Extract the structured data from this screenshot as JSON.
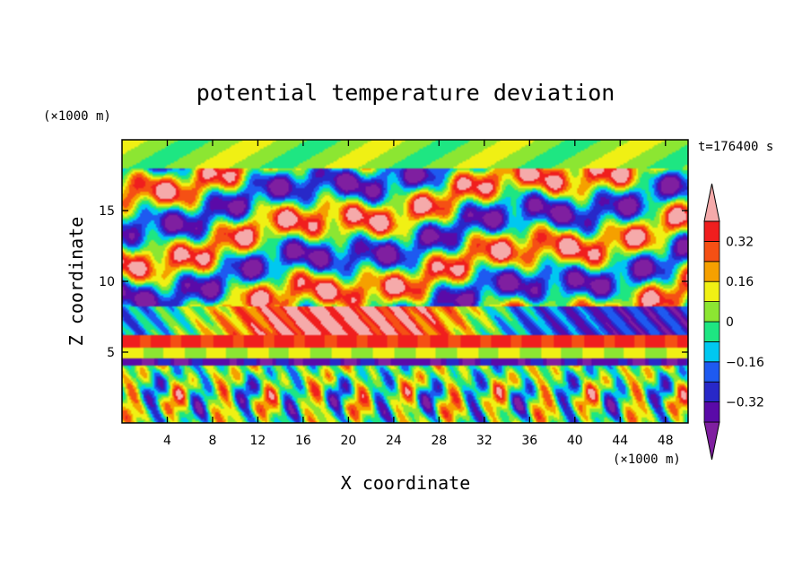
{
  "chart_data": {
    "type": "heatmap",
    "title": "potential temperature deviation",
    "xlabel": "X coordinate",
    "ylabel": "Z coordinate",
    "x_unit": "(×1000 m)",
    "y_unit": "(×1000 m)",
    "time_label": "t=176400 s",
    "xlim": [
      0,
      50
    ],
    "ylim": [
      0,
      20
    ],
    "x_ticks": [
      4,
      8,
      12,
      16,
      20,
      24,
      28,
      32,
      36,
      40,
      44,
      48
    ],
    "y_ticks": [
      5,
      10,
      15
    ],
    "colorbar": {
      "levels": [
        -0.4,
        -0.32,
        -0.24,
        -0.16,
        -0.08,
        0,
        0.08,
        0.16,
        0.24,
        0.32,
        0.4
      ],
      "tick_labels": [
        "0.32",
        "0.16",
        "0",
        "−0.16",
        "−0.32"
      ],
      "tick_values": [
        0.32,
        0.16,
        0,
        -0.16,
        -0.32
      ],
      "colors": [
        "#7f1fa0",
        "#5a0aa8",
        "#2828c8",
        "#1e5af0",
        "#00c8f0",
        "#1ee682",
        "#8ce632",
        "#f0f014",
        "#f5a000",
        "#f55014",
        "#f01e1e",
        "#f5aaaa"
      ]
    },
    "regions": [
      {
        "z": [
          0,
          4
        ],
        "mean": 0.02,
        "pattern": "vertical-plumes"
      },
      {
        "z": [
          4,
          4.6
        ],
        "mean": -0.36,
        "pattern": "band"
      },
      {
        "z": [
          4.6,
          5.3
        ],
        "mean": 0.1,
        "pattern": "band"
      },
      {
        "z": [
          5.3,
          6.2
        ],
        "mean": 0.36,
        "pattern": "band"
      },
      {
        "z": [
          6.2,
          8.2
        ],
        "mean": 0.3,
        "pattern": "dome"
      },
      {
        "z": [
          8.2,
          18
        ],
        "mean": 0.0,
        "pattern": "tilted-layers"
      },
      {
        "z": [
          18,
          20
        ],
        "mean": 0.05,
        "pattern": "smooth"
      }
    ]
  }
}
